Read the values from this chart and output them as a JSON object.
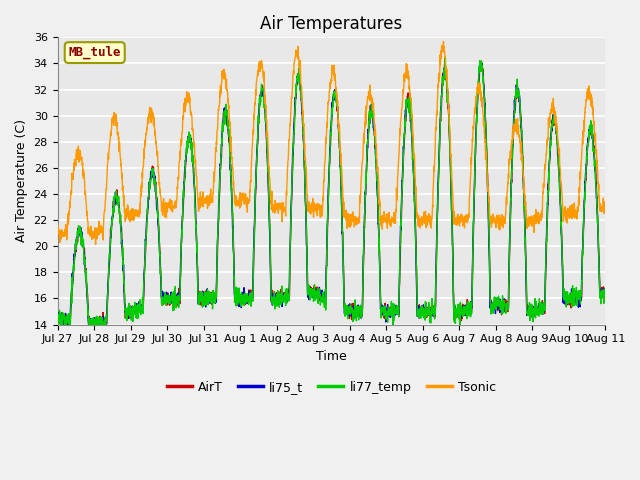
{
  "title": "Air Temperatures",
  "ylabel": "Air Temperature (C)",
  "xlabel": "Time",
  "ylim": [
    14,
    36
  ],
  "yticks": [
    14,
    16,
    18,
    20,
    22,
    24,
    26,
    28,
    30,
    32,
    34,
    36
  ],
  "xtick_labels": [
    "Jul 27",
    "Jul 28",
    "Jul 29",
    "Jul 30",
    "Jul 31",
    "Aug 1",
    "Aug 2",
    "Aug 3",
    "Aug 4",
    "Aug 5",
    "Aug 6",
    "Aug 7",
    "Aug 8",
    "Aug 9",
    "Aug 10",
    "Aug 11"
  ],
  "series_colors": {
    "AirT": "#cc0000",
    "li75_t": "#0000cc",
    "li77_temp": "#00cc00",
    "Tsonic": "#ff9900"
  },
  "series_names": [
    "AirT",
    "li75_t",
    "li77_temp",
    "Tsonic"
  ],
  "annotation_label": "MB_tule",
  "annotation_label_color": "#8b0000",
  "annotation_box_facecolor": "#ffffcc",
  "annotation_box_edgecolor": "#999900",
  "background_color": "#e8e8e8",
  "plot_bg_color": "#e8e8e8",
  "grid_color": "#ffffff",
  "n_days": 15,
  "pts_per_day": 144,
  "title_fontsize": 12,
  "label_fontsize": 9,
  "tick_fontsize": 8,
  "legend_fontsize": 9,
  "linewidth": 1.0,
  "air_mins": [
    14.5,
    14.0,
    15.0,
    16.0,
    16.0,
    16.0,
    16.0,
    16.5,
    15.0,
    15.0,
    15.0,
    15.0,
    15.5,
    15.0,
    16.0,
    16.5
  ],
  "air_maxs": [
    20.0,
    22.0,
    25.0,
    26.0,
    30.0,
    30.5,
    33.0,
    33.0,
    31.0,
    30.0,
    32.0,
    34.5,
    33.5,
    31.0,
    29.0,
    29.0
  ],
  "tsonic_mins": [
    21.0,
    21.0,
    22.5,
    23.0,
    23.5,
    23.5,
    23.0,
    23.0,
    22.0,
    22.0,
    22.0,
    22.0,
    22.0,
    22.0,
    22.5,
    23.0
  ],
  "tsonic_maxs": [
    25.0,
    29.0,
    30.5,
    30.0,
    32.5,
    33.5,
    34.5,
    35.0,
    32.0,
    31.5,
    35.0,
    35.5,
    29.5,
    29.5,
    31.5,
    32.0
  ]
}
